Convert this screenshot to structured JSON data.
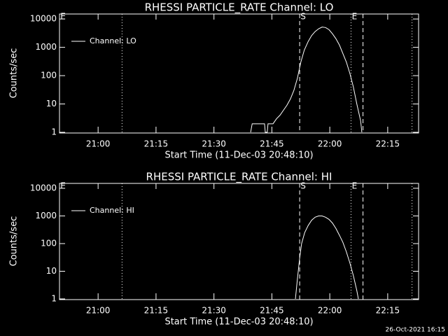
{
  "chart_data": [
    {
      "type": "line",
      "title": "RHESSI PARTICLE_RATE Channel: LO",
      "xlabel": "Start Time (11-Dec-03 20:48:10)",
      "ylabel": "Counts/sec",
      "x": [
        1299.5,
        1299.9,
        1303.1,
        1303.3,
        1303.8,
        1304.0,
        1305.3,
        1306.2,
        1307.1,
        1308.0,
        1308.9,
        1309.8,
        1310.7,
        1311.6,
        1312.5,
        1313.4,
        1314.4,
        1315.3,
        1316.2,
        1317.1,
        1318.0,
        1318.9,
        1319.8,
        1320.7,
        1321.6,
        1322.5,
        1323.4,
        1324.3,
        1325.2,
        1326.1,
        1327.0,
        1328.0,
        1328.3
      ],
      "series": [
        {
          "name": "Channel: LO",
          "color": "#ffffff",
          "values": [
            1,
            2,
            2,
            1,
            1,
            2,
            2,
            3,
            4,
            6,
            9,
            15,
            30,
            80,
            300,
            800,
            1600,
            2600,
            3600,
            4500,
            5200,
            5000,
            4200,
            3000,
            2000,
            1200,
            600,
            300,
            120,
            40,
            10,
            2.5,
            1
          ]
        }
      ],
      "xlim": [
        1250,
        1343
      ],
      "xticks": [
        {
          "value": 1260,
          "label": "21:00"
        },
        {
          "value": 1275,
          "label": "21:15"
        },
        {
          "value": 1290,
          "label": "21:30"
        },
        {
          "value": 1305,
          "label": "21:45"
        },
        {
          "value": 1320,
          "label": "22:00"
        },
        {
          "value": 1335,
          "label": "22:15"
        }
      ],
      "ylim": [
        1,
        15000
      ],
      "yticks": [
        1,
        10,
        100,
        1000,
        10000
      ],
      "log_y": true,
      "markers": [
        {
          "x": 1266.2,
          "style": "dotted"
        },
        {
          "x": 1312.2,
          "style": "dashed"
        },
        {
          "x": 1325.5,
          "style": "dotted"
        },
        {
          "x": 1328.6,
          "style": "dashed"
        },
        {
          "x": 1341.3,
          "style": "dotted"
        }
      ],
      "annotations": [
        {
          "text": "E",
          "x": 1250
        },
        {
          "text": "S",
          "x": 1312.2
        },
        {
          "text": "E",
          "x": 1325.5
        }
      ]
    },
    {
      "type": "line",
      "title": "RHESSI PARTICLE_RATE Channel: HI",
      "xlabel": "Start Time (11-Dec-03 20:48:10)",
      "ylabel": "Counts/sec",
      "x": [
        1311.1,
        1311.6,
        1312.2,
        1312.7,
        1313.5,
        1314.4,
        1315.3,
        1316.2,
        1317.1,
        1318.0,
        1318.9,
        1319.8,
        1320.7,
        1321.6,
        1322.5,
        1323.4,
        1324.3,
        1325.2,
        1326.1,
        1327.0,
        1327.4
      ],
      "series": [
        {
          "name": "Channel: HI",
          "color": "#ffffff",
          "values": [
            1,
            5,
            30,
            100,
            250,
            450,
            700,
            900,
            1000,
            1000,
            900,
            750,
            550,
            350,
            200,
            110,
            50,
            20,
            7,
            2,
            1
          ]
        }
      ],
      "xlim": [
        1250,
        1343
      ],
      "xticks": [
        {
          "value": 1260,
          "label": "21:00"
        },
        {
          "value": 1275,
          "label": "21:15"
        },
        {
          "value": 1290,
          "label": "21:30"
        },
        {
          "value": 1305,
          "label": "21:45"
        },
        {
          "value": 1320,
          "label": "22:00"
        },
        {
          "value": 1335,
          "label": "22:15"
        }
      ],
      "ylim": [
        1,
        15000
      ],
      "yticks": [
        1,
        10,
        100,
        1000,
        10000
      ],
      "log_y": true,
      "markers": [
        {
          "x": 1266.2,
          "style": "dotted"
        },
        {
          "x": 1312.2,
          "style": "dashed"
        },
        {
          "x": 1325.5,
          "style": "dotted"
        },
        {
          "x": 1328.6,
          "style": "dashed"
        },
        {
          "x": 1341.3,
          "style": "dotted"
        }
      ],
      "annotations": [
        {
          "text": "E",
          "x": 1250
        },
        {
          "text": "S",
          "x": 1312.2
        },
        {
          "text": "E",
          "x": 1325.5
        }
      ]
    }
  ],
  "footer": "26-Oct-2021 16:15"
}
